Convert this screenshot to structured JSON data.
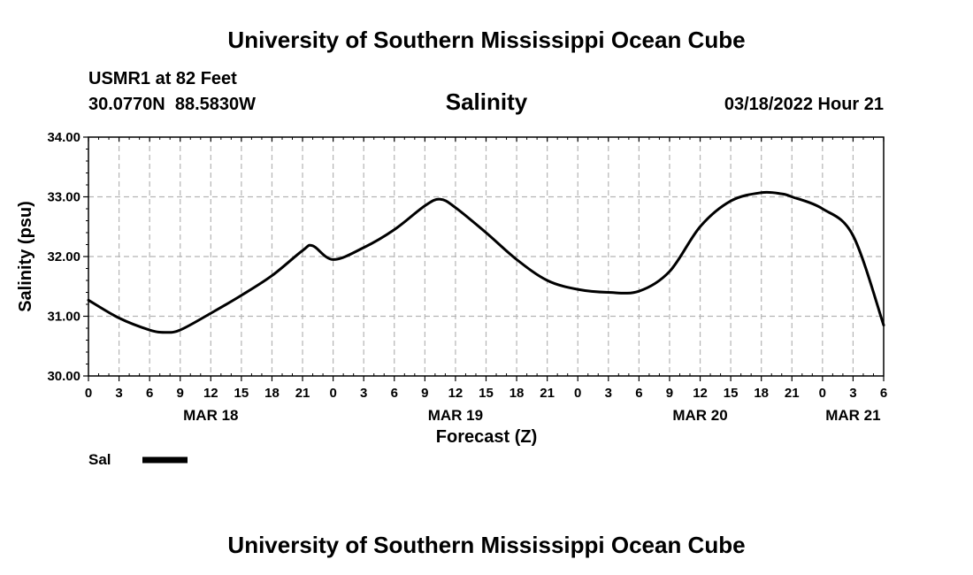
{
  "header": {
    "title": "University of Southern Mississippi Ocean Cube",
    "station": "USMR1 at 82 Feet",
    "coords": "30.0770N  88.5830W",
    "chart_title": "Salinity",
    "date": "03/18/2022 Hour 21"
  },
  "footer": {
    "title": "University of Southern Mississippi Ocean Cube"
  },
  "legend": {
    "label": "Sal"
  },
  "colors": {
    "line": "#000000",
    "grid": "#b4b4b4"
  },
  "chart_data": {
    "type": "line",
    "title": "Salinity",
    "xlabel": "Forecast (Z)",
    "ylabel": "Salinity (psu)",
    "ylim": [
      30.0,
      34.0
    ],
    "xlim": [
      0,
      78
    ],
    "x_unit": "hours from MAR 18 00Z",
    "y_ticks": [
      "30.00",
      "31.00",
      "32.00",
      "33.00",
      "34.00"
    ],
    "x_tick_labels": [
      "0",
      "3",
      "6",
      "9",
      "12",
      "15",
      "18",
      "21",
      "0",
      "3",
      "6",
      "9",
      "12",
      "15",
      "18",
      "21",
      "0",
      "3",
      "6",
      "9",
      "12",
      "15",
      "18",
      "21",
      "0",
      "3",
      "6"
    ],
    "date_labels": [
      {
        "label": "MAR 18",
        "hour": 12
      },
      {
        "label": "MAR 19",
        "hour": 36
      },
      {
        "label": "MAR 20",
        "hour": 60
      },
      {
        "label": "MAR 21",
        "hour": 75
      }
    ],
    "grid": true,
    "series": [
      {
        "name": "Sal",
        "x": [
          0,
          3,
          6,
          7.5,
          9,
          12,
          15,
          18,
          21,
          22,
          24,
          27,
          30,
          33,
          34.5,
          36,
          39,
          42,
          45,
          48,
          51,
          54,
          57,
          60,
          63,
          66,
          68,
          69,
          72,
          75,
          78
        ],
        "y": [
          31.27,
          30.97,
          30.77,
          30.73,
          30.77,
          31.05,
          31.35,
          31.68,
          32.1,
          32.18,
          31.95,
          32.15,
          32.45,
          32.85,
          32.96,
          32.82,
          32.4,
          31.95,
          31.6,
          31.45,
          31.4,
          31.42,
          31.75,
          32.5,
          32.93,
          33.07,
          33.05,
          33.0,
          32.8,
          32.35,
          30.85
        ]
      }
    ]
  }
}
